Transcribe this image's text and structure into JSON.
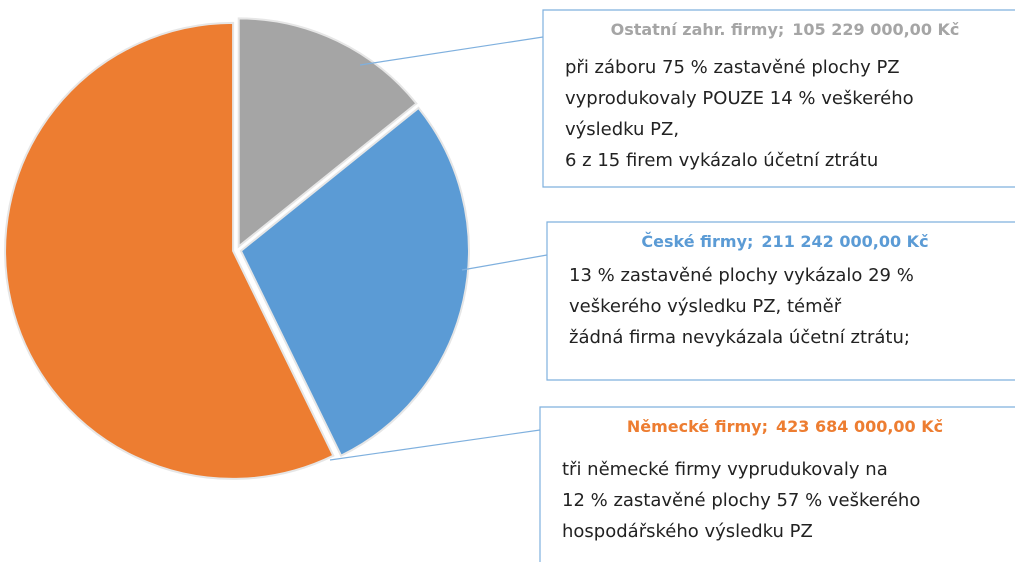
{
  "chart_data": {
    "type": "pie",
    "categories": [
      "Ostatní zahr. firmy;",
      "České firmy;",
      "Německé firmy;"
    ],
    "values": [
      105229000,
      211242000,
      423684000
    ],
    "value_labels": [
      "105 229 000,00 Kč",
      "211 242 000,00 Kč",
      "423 684 000,00 Kč"
    ],
    "colors": [
      "#a5a5a5",
      "#5b9bd5",
      "#ed7d31"
    ],
    "annotations": [
      [
        "při záboru 75 % zastavěné plochy PZ",
        "vyprodukovaly POUZE 14 % veškerého",
        "výsledku PZ,",
        "6 z 15 firem vykázalo účetní ztrátu"
      ],
      [
        "13 % zastavěné plochy vykázalo 29 %",
        "veškerého výsledku PZ, téměř",
        "žádná firma nevykázala účetní ztrátu;"
      ],
      [
        "tři německé firmy vyprudukovaly na",
        "12 % zastavěné plochy 57 % veškerého",
        "hospodářského výsledku PZ"
      ]
    ]
  }
}
